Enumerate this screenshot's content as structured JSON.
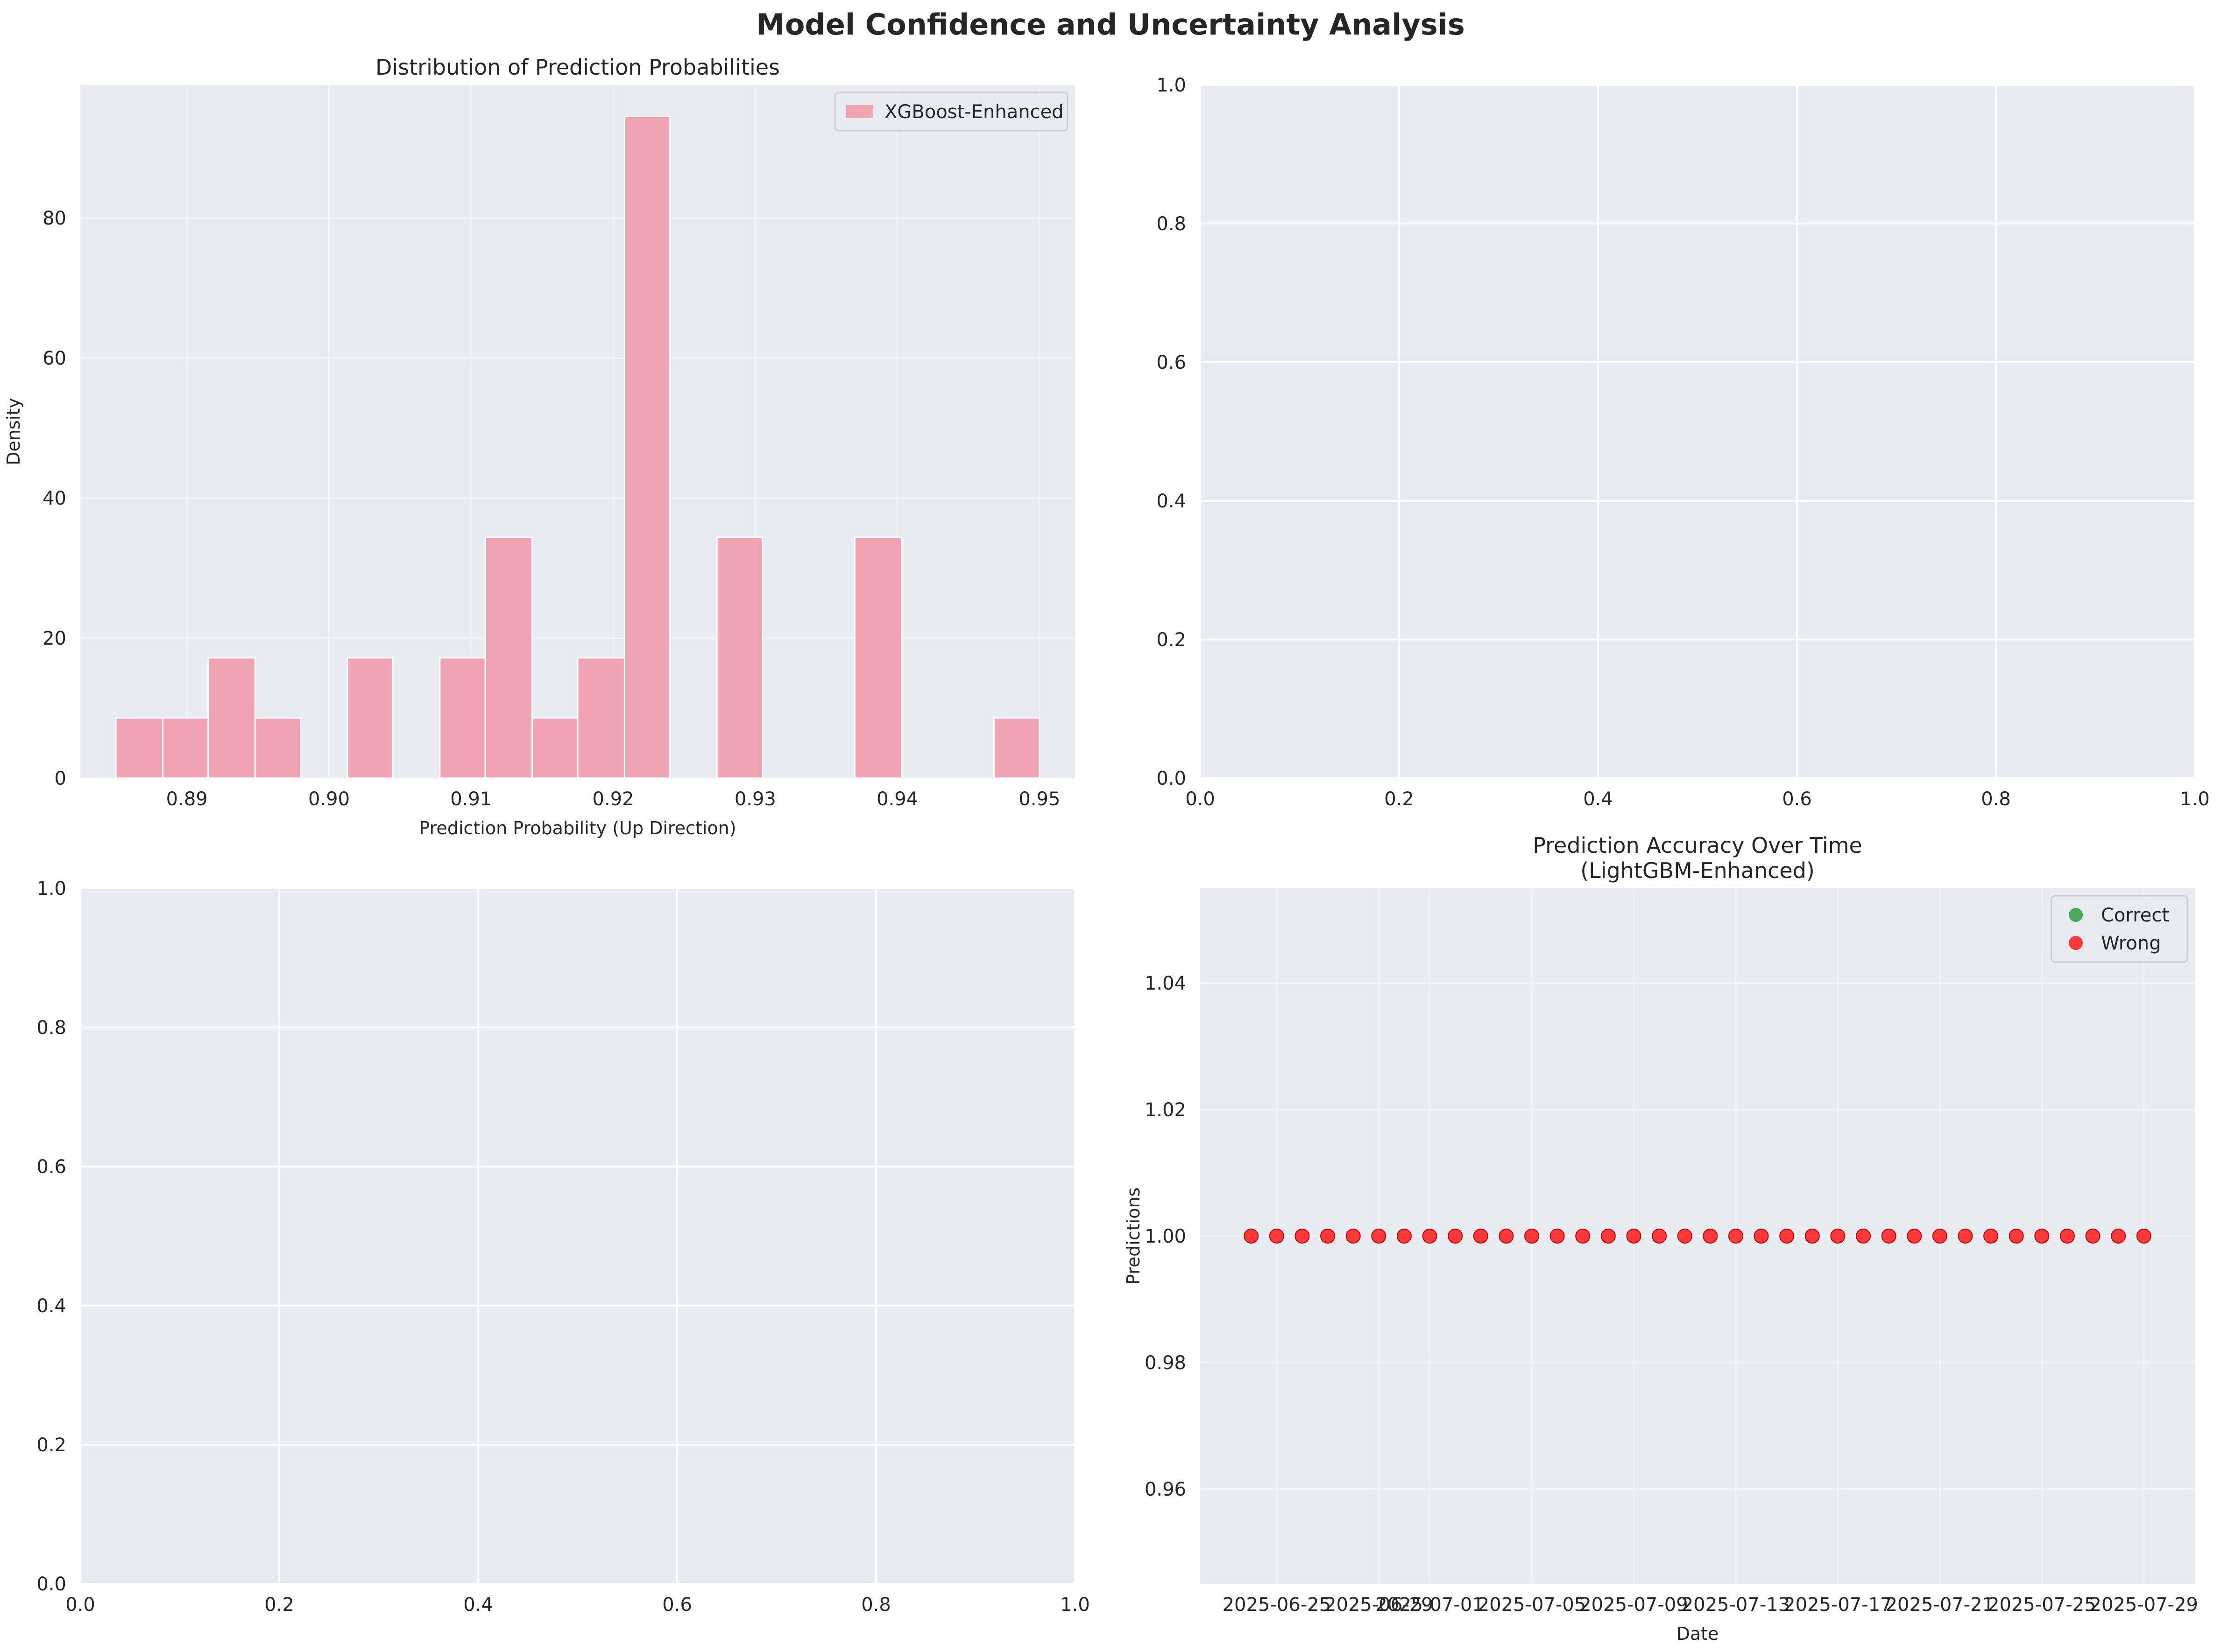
{
  "figure": {
    "title": "Model Confidence and Uncertainty Analysis"
  },
  "chart_data": [
    {
      "type": "bar",
      "title": "Distribution of Prediction Probabilities",
      "xlabel": "Prediction Probability (Up Direction)",
      "ylabel": "Density",
      "xlim": [
        0.8825,
        0.9525
      ],
      "ylim": [
        0,
        99
      ],
      "xticks": [
        0.89,
        0.9,
        0.91,
        0.92,
        0.93,
        0.94,
        0.95
      ],
      "xtick_labels": [
        "0.89",
        "0.90",
        "0.91",
        "0.92",
        "0.93",
        "0.94",
        "0.95"
      ],
      "yticks": [
        0,
        20,
        40,
        60,
        80
      ],
      "ytick_labels": [
        "0",
        "20",
        "40",
        "60",
        "80"
      ],
      "grid": true,
      "legend": "top-right",
      "series": [
        {
          "name": "XGBoost-Enhanced",
          "color": "#f1a2b3",
          "bin_edges": [
            0.885,
            0.8883,
            0.8915,
            0.8948,
            0.898,
            0.9013,
            0.9045,
            0.9078,
            0.911,
            0.9143,
            0.9175,
            0.9208,
            0.924,
            0.9273,
            0.9305,
            0.9338,
            0.937,
            0.9403,
            0.9435,
            0.9468,
            0.95
          ],
          "values": [
            8.6,
            8.6,
            17.2,
            8.6,
            0,
            17.2,
            0,
            17.2,
            34.4,
            8.6,
            17.2,
            94.5,
            0,
            34.4,
            0,
            0,
            34.4,
            0,
            0,
            8.6
          ]
        }
      ]
    },
    {
      "type": "scatter",
      "title": "",
      "xlim": [
        0,
        1
      ],
      "ylim": [
        0,
        1
      ],
      "xticks": [
        0,
        0.2,
        0.4,
        0.6,
        0.8,
        1.0
      ],
      "xtick_labels": [
        "0.0",
        "0.2",
        "0.4",
        "0.6",
        "0.8",
        "1.0"
      ],
      "yticks": [
        0,
        0.2,
        0.4,
        0.6,
        0.8,
        1.0
      ],
      "ytick_labels": [
        "0.0",
        "0.2",
        "0.4",
        "0.6",
        "0.8",
        "1.0"
      ],
      "grid": true,
      "series": []
    },
    {
      "type": "scatter",
      "title": "",
      "xlim": [
        0,
        1
      ],
      "ylim": [
        0,
        1
      ],
      "xticks": [
        0,
        0.2,
        0.4,
        0.6,
        0.8,
        1.0
      ],
      "xtick_labels": [
        "0.0",
        "0.2",
        "0.4",
        "0.6",
        "0.8",
        "1.0"
      ],
      "yticks": [
        0,
        0.2,
        0.4,
        0.6,
        0.8,
        1.0
      ],
      "ytick_labels": [
        "0.0",
        "0.2",
        "0.4",
        "0.6",
        "0.8",
        "1.0"
      ],
      "grid": true,
      "series": []
    },
    {
      "type": "scatter",
      "title": "Prediction Accuracy Over Time\n(LightGBM-Enhanced)",
      "xlabel": "Date",
      "ylabel": "Predictions",
      "xlim": [
        "2025-06-22",
        "2025-07-31"
      ],
      "ylim": [
        0.945,
        1.055
      ],
      "xticks": [
        "2025-06-25",
        "2025-06-29",
        "2025-07-01",
        "2025-07-05",
        "2025-07-09",
        "2025-07-13",
        "2025-07-17",
        "2025-07-21",
        "2025-07-25",
        "2025-07-29"
      ],
      "xtick_labels": [
        "2025-06-25",
        "2025-06-29",
        "2025-07-01",
        "2025-07-05",
        "2025-07-09",
        "2025-07-13",
        "2025-07-17",
        "2025-07-21",
        "2025-07-25",
        "2025-07-29"
      ],
      "yticks": [
        0.96,
        0.98,
        1.0,
        1.02,
        1.04
      ],
      "ytick_labels": [
        "0.96",
        "0.98",
        "1.00",
        "1.02",
        "1.04"
      ],
      "grid": true,
      "legend": "top-right",
      "series": [
        {
          "name": "Correct",
          "color": "#2e9e3e",
          "x": [],
          "y": []
        },
        {
          "name": "Wrong",
          "color": "#ff1a1a",
          "x": [
            "2025-06-24",
            "2025-06-25",
            "2025-06-26",
            "2025-06-27",
            "2025-06-28",
            "2025-06-29",
            "2025-06-30",
            "2025-07-01",
            "2025-07-02",
            "2025-07-03",
            "2025-07-04",
            "2025-07-05",
            "2025-07-06",
            "2025-07-07",
            "2025-07-08",
            "2025-07-09",
            "2025-07-10",
            "2025-07-11",
            "2025-07-12",
            "2025-07-13",
            "2025-07-14",
            "2025-07-15",
            "2025-07-16",
            "2025-07-17",
            "2025-07-18",
            "2025-07-19",
            "2025-07-20",
            "2025-07-21",
            "2025-07-22",
            "2025-07-23",
            "2025-07-24",
            "2025-07-25",
            "2025-07-26",
            "2025-07-27",
            "2025-07-28",
            "2025-07-29"
          ],
          "y": [
            1,
            1,
            1,
            1,
            1,
            1,
            1,
            1,
            1,
            1,
            1,
            1,
            1,
            1,
            1,
            1,
            1,
            1,
            1,
            1,
            1,
            1,
            1,
            1,
            1,
            1,
            1,
            1,
            1,
            1,
            1,
            1,
            1,
            1,
            1,
            1
          ]
        }
      ]
    }
  ]
}
